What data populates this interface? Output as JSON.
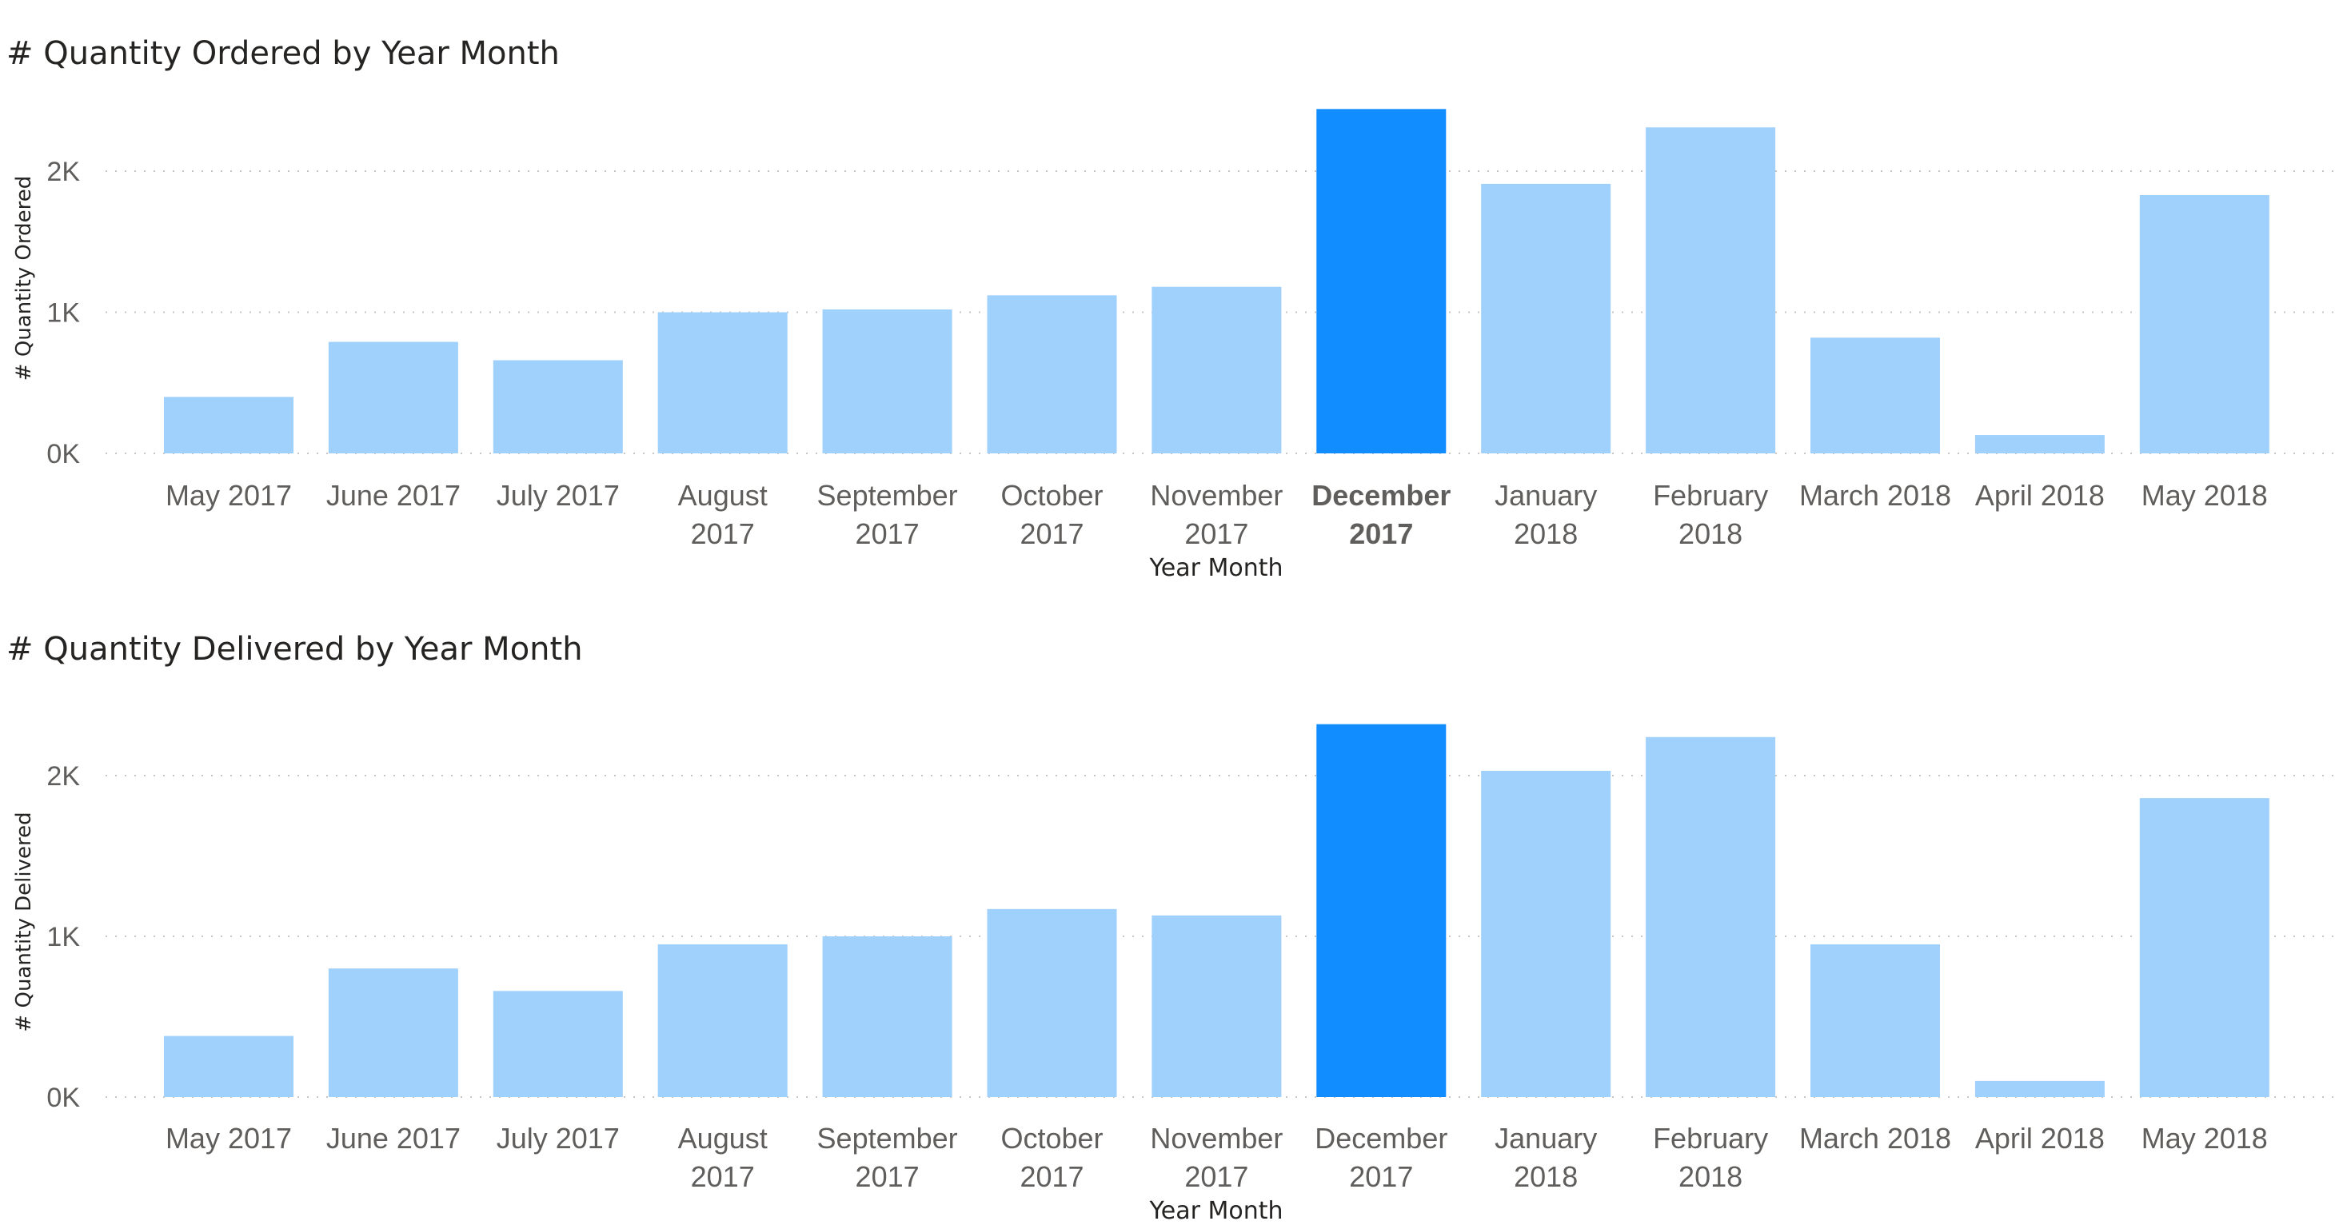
{
  "colors": {
    "bar": "#a0d0fc",
    "bar_highlight": "#118dff",
    "text": "#252423",
    "tick": "#605e5c",
    "grid": "#c8c6c4"
  },
  "chart_data": [
    {
      "type": "bar",
      "title": "# Quantity Ordered by Year Month",
      "xlabel": "Year Month",
      "ylabel": "# Quantity Ordered",
      "ylim": [
        0,
        2500
      ],
      "y_ticks": [
        0,
        1000,
        2000
      ],
      "y_tick_labels": [
        "0K",
        "1K",
        "2K"
      ],
      "grid": true,
      "highlight_category": "December 2017",
      "highlight_label_bold": true,
      "categories": [
        "May 2017",
        "June 2017",
        "July 2017",
        "August 2017",
        "September 2017",
        "October 2017",
        "November 2017",
        "December 2017",
        "January 2018",
        "February 2018",
        "March 2018",
        "April 2018",
        "May 2018"
      ],
      "values": [
        400,
        790,
        660,
        1000,
        1020,
        1120,
        1180,
        2440,
        1910,
        2310,
        820,
        130,
        1830
      ]
    },
    {
      "type": "bar",
      "title": "# Quantity Delivered by Year Month",
      "xlabel": "Year Month",
      "ylabel": "# Quantity Delivered",
      "ylim": [
        0,
        2400
      ],
      "y_ticks": [
        0,
        1000,
        2000
      ],
      "y_tick_labels": [
        "0K",
        "1K",
        "2K"
      ],
      "grid": true,
      "highlight_category": "December 2017",
      "highlight_label_bold": false,
      "categories": [
        "May 2017",
        "June 2017",
        "July 2017",
        "August 2017",
        "September 2017",
        "October 2017",
        "November 2017",
        "December 2017",
        "January 2018",
        "February 2018",
        "March 2018",
        "April 2018",
        "May 2018"
      ],
      "values": [
        380,
        800,
        660,
        950,
        1000,
        1170,
        1130,
        2320,
        2030,
        2240,
        950,
        100,
        1860
      ]
    }
  ]
}
